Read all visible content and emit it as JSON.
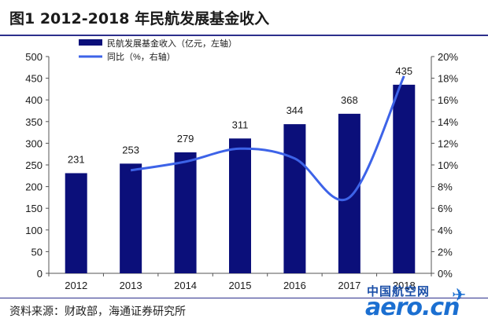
{
  "header": {
    "title": "图1   2012-2018 年民航发展基金收入"
  },
  "footer": {
    "source": "资料来源：财政部，海通证券研究所"
  },
  "watermark": {
    "cn": "中国航空网",
    "en": "aero.cn"
  },
  "colors": {
    "bar": "#0b0f7a",
    "line": "#3d63e8",
    "accent": "#2c2f8c"
  },
  "chart_data": {
    "type": "bar",
    "categories": [
      "2012",
      "2013",
      "2014",
      "2015",
      "2016",
      "2017",
      "2018"
    ],
    "series": [
      {
        "name": "民航发展基金收入（亿元，左轴）",
        "type": "bar",
        "axis": "left",
        "values": [
          231,
          253,
          279,
          311,
          344,
          368,
          435
        ]
      },
      {
        "name": "同比（%，右轴）",
        "type": "line",
        "axis": "right",
        "values": [
          null,
          9.5,
          10.3,
          11.5,
          10.6,
          7.0,
          18.2
        ]
      }
    ],
    "ylim_left": [
      0,
      500
    ],
    "yticks_left": [
      "0",
      "50",
      "100",
      "150",
      "200",
      "250",
      "300",
      "350",
      "400",
      "450",
      "500"
    ],
    "ylim_right": [
      0,
      20
    ],
    "yticks_right": [
      "0%",
      "2%",
      "4%",
      "6%",
      "8%",
      "10%",
      "12%",
      "14%",
      "16%",
      "18%",
      "20%"
    ],
    "data_labels": [
      "231",
      "253",
      "279",
      "311",
      "344",
      "368",
      "435"
    ],
    "legend_position": "top-left",
    "grid": false
  }
}
